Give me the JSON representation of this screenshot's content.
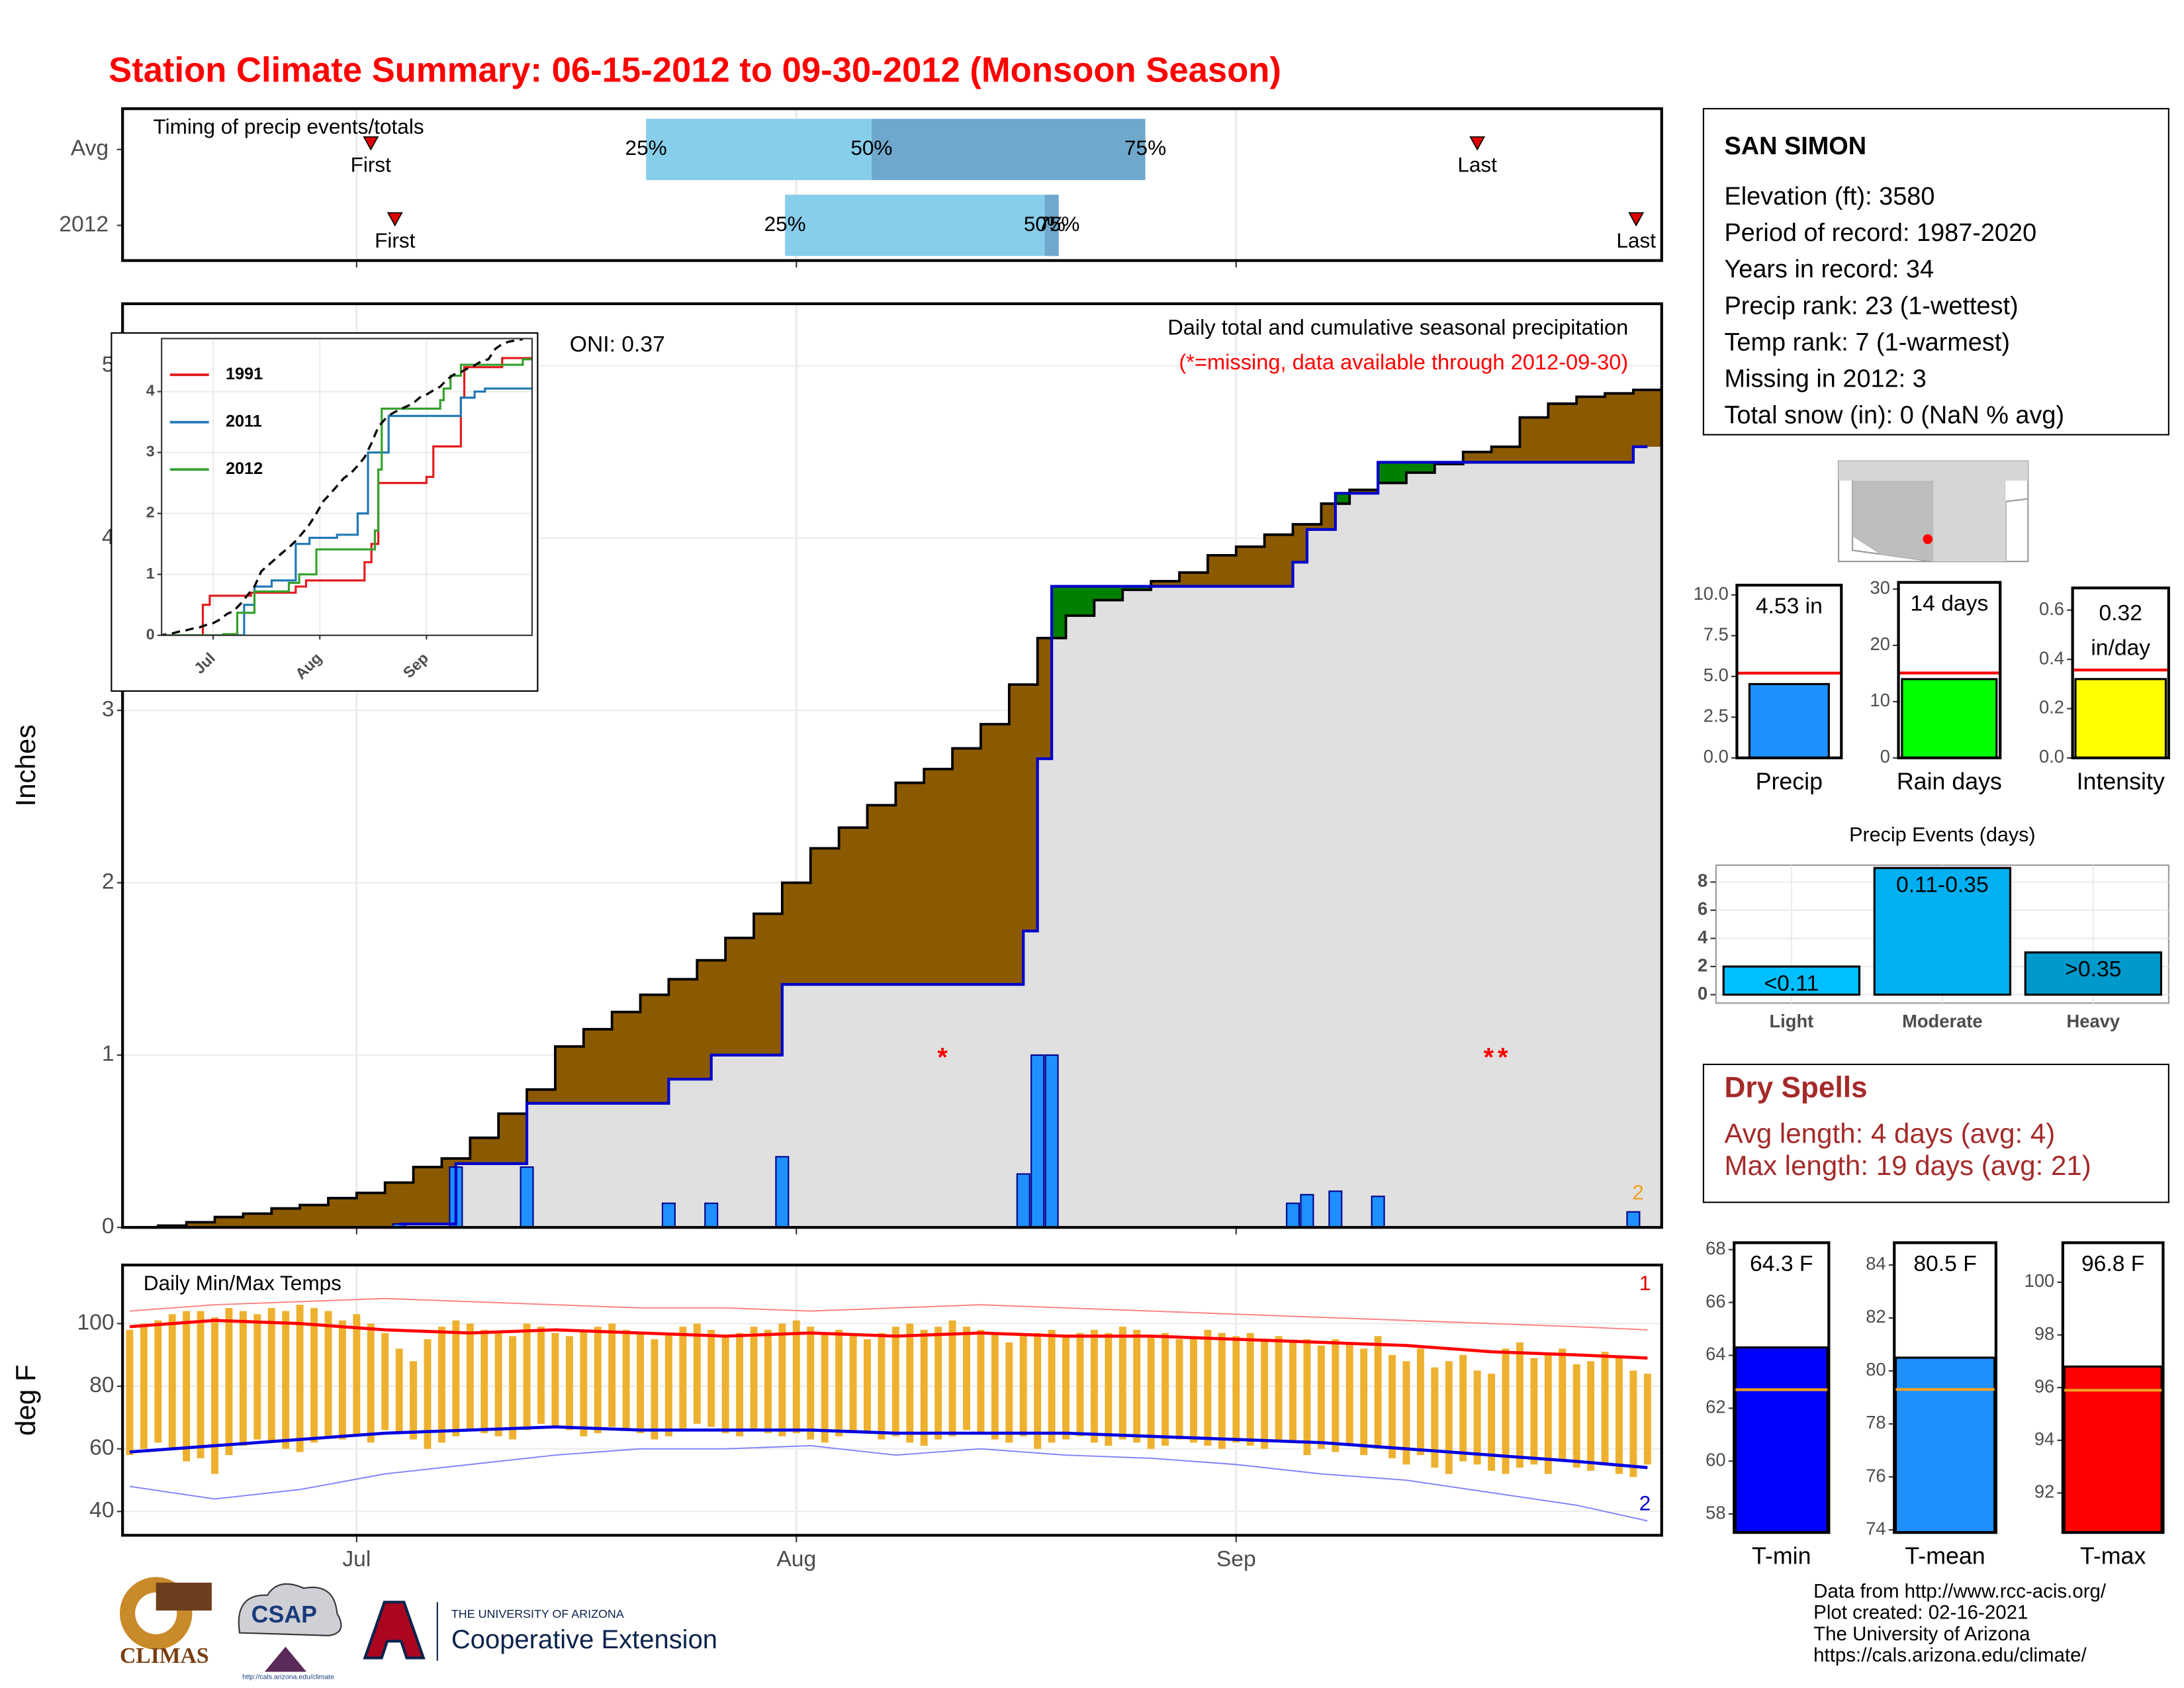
{
  "title": "Station Climate Summary: 06-15-2012 to 09-30-2012 (Monsoon Season)",
  "chart_data": [
    {
      "type": "timing",
      "title": "Timing of precip events/totals",
      "xlim": [
        -0.5,
        108
      ],
      "xticks": [
        {
          "value": 16,
          "label": "Jul"
        },
        {
          "value": 47,
          "label": "Aug"
        },
        {
          "value": 78,
          "label": "Sep"
        }
      ],
      "first_label": "First",
      "last_label": "Last",
      "percentile_labels": [
        "25%",
        "50%",
        "75%"
      ],
      "colors": [
        "#87ceeb",
        "#6fa8cc"
      ],
      "marker_color": "#e00000",
      "rows": [
        {
          "name": "Avg",
          "first": 17,
          "p25": 36.4,
          "p50": 52.3,
          "p75": 71.6,
          "last": 95
        },
        {
          "name": "2012",
          "first": 18.7,
          "p25": 46.2,
          "p50": 64.5,
          "p75": 65.5,
          "last": 106.2
        }
      ]
    },
    {
      "type": "step",
      "ylabel": "Inches",
      "subtitle": "Daily total and cumulative seasonal precipitation",
      "note": "(*=missing, data available through 2012-09-30)",
      "oni_label": "ONI: 0.37",
      "count_label": "2",
      "missing_symbol": "*",
      "missing_days": [
        57.3,
        95.8,
        96.8
      ],
      "xlim": [
        -0.5,
        108
      ],
      "xticks": [
        {
          "value": 16,
          "label": "Jul"
        },
        {
          "value": 47,
          "label": "Aug"
        },
        {
          "value": 78,
          "label": "Sep"
        }
      ],
      "ylim": [
        0,
        5.36
      ],
      "yticks": [
        0,
        1,
        2,
        3,
        4,
        5
      ],
      "grid": true,
      "colors": {
        "bars": "#1e90ff",
        "line": "#0000cc",
        "avg": "#000000",
        "below": "#8b5a00",
        "above": "#008000",
        "fill": "#e0e0e0"
      },
      "daily": {
        "x": [
          19,
          23,
          28,
          38,
          41,
          46,
          63,
          64,
          65,
          82,
          83,
          85,
          88,
          106
        ],
        "values": [
          0.02,
          0.35,
          0.35,
          0.14,
          0.14,
          0.41,
          0.31,
          1.0,
          1.0,
          0.14,
          0.19,
          0.21,
          0.18,
          0.09
        ]
      },
      "avg_cumulative": {
        "x": [
          0,
          2,
          4,
          6,
          8,
          10,
          12,
          14,
          16,
          18,
          20,
          22,
          24,
          26,
          28,
          30,
          32,
          34,
          36,
          38,
          40,
          42,
          44,
          46,
          48,
          50,
          52,
          54,
          56,
          58,
          60,
          62,
          64,
          66,
          68,
          70,
          72,
          74,
          76,
          78,
          80,
          82,
          84,
          86,
          88,
          90,
          92,
          94,
          96,
          98,
          100,
          102,
          104,
          106
        ],
        "values": [
          0.0,
          0.01,
          0.03,
          0.06,
          0.08,
          0.11,
          0.13,
          0.17,
          0.2,
          0.26,
          0.35,
          0.4,
          0.52,
          0.66,
          0.8,
          1.05,
          1.15,
          1.25,
          1.35,
          1.44,
          1.55,
          1.68,
          1.82,
          2.0,
          2.2,
          2.32,
          2.45,
          2.58,
          2.66,
          2.78,
          2.92,
          3.15,
          3.42,
          3.55,
          3.64,
          3.7,
          3.75,
          3.8,
          3.9,
          3.95,
          4.02,
          4.08,
          4.2,
          4.28,
          4.32,
          4.38,
          4.43,
          4.5,
          4.53,
          4.7,
          4.78,
          4.82,
          4.84,
          4.86
        ]
      }
    },
    {
      "type": "line",
      "xlim": [
        1,
        108.7
      ],
      "xticks": [
        {
          "value": 16,
          "label": "Jul"
        },
        {
          "value": 47,
          "label": "Aug"
        },
        {
          "value": 78,
          "label": "Sep"
        }
      ],
      "ylim": [
        0,
        4.87
      ],
      "yticks": [
        0,
        1,
        2,
        3,
        4
      ],
      "series": [
        {
          "name": "1991",
          "color": "#e31a1c",
          "x": [
            0,
            13,
            15,
            27,
            40,
            43,
            60,
            62,
            64,
            78,
            80,
            88,
            89,
            100
          ],
          "values": [
            0,
            0.5,
            0.65,
            0.7,
            0.8,
            0.9,
            1.2,
            1.5,
            2.5,
            2.6,
            3.1,
            3.9,
            4.4,
            4.55
          ]
        },
        {
          "name": "2011",
          "color": "#1f78b4",
          "x": [
            0,
            25,
            28,
            33,
            40,
            44,
            52,
            58,
            61,
            67,
            88,
            92,
            95
          ],
          "values": [
            0,
            0.5,
            0.8,
            0.9,
            1.5,
            1.6,
            1.65,
            2.0,
            3.0,
            3.6,
            3.9,
            4.0,
            4.05
          ]
        },
        {
          "name": "2012",
          "color": "#33a02c",
          "x": [
            0,
            19,
            23,
            28,
            38,
            41,
            46,
            63,
            64,
            65,
            82,
            83,
            85,
            88,
            106
          ],
          "values": [
            0,
            0.02,
            0.37,
            0.72,
            0.86,
            1.0,
            1.41,
            1.72,
            2.72,
            3.72,
            3.86,
            4.05,
            4.26,
            4.44,
            4.53
          ]
        }
      ]
    },
    {
      "type": "range",
      "title": "Daily Min/Max Temps",
      "ylabel": "deg F",
      "record_max_label": "1",
      "record_min_label": "2",
      "xlim": [
        -0.5,
        108
      ],
      "xticks": [
        {
          "value": 16,
          "label": "Jul"
        },
        {
          "value": 47,
          "label": "Aug"
        },
        {
          "value": 78,
          "label": "Sep"
        }
      ],
      "ylim": [
        32.4,
        118.7
      ],
      "yticks": [
        40,
        60,
        80,
        100
      ],
      "grid": true,
      "colors": {
        "bars": "#eeb12f",
        "avg_max": "#ff0000",
        "avg_min": "#0000e0",
        "record_max": "#ff8080",
        "record_min": "#8080ff"
      },
      "x": [
        0,
        1,
        2,
        3,
        4,
        5,
        6,
        7,
        8,
        9,
        10,
        11,
        12,
        13,
        14,
        15,
        16,
        17,
        18,
        19,
        20,
        21,
        22,
        23,
        24,
        25,
        26,
        27,
        28,
        29,
        30,
        31,
        32,
        33,
        34,
        35,
        36,
        37,
        38,
        39,
        40,
        41,
        42,
        43,
        44,
        45,
        46,
        47,
        48,
        49,
        50,
        51,
        52,
        53,
        54,
        55,
        56,
        57,
        58,
        59,
        60,
        61,
        62,
        63,
        64,
        65,
        66,
        67,
        68,
        69,
        70,
        71,
        72,
        73,
        74,
        75,
        76,
        77,
        78,
        79,
        80,
        81,
        82,
        83,
        84,
        85,
        86,
        87,
        88,
        89,
        90,
        91,
        92,
        93,
        94,
        95,
        96,
        97,
        98,
        99,
        100,
        101,
        102,
        103,
        104,
        105,
        106,
        107
      ],
      "max": [
        98,
        100,
        101,
        103,
        104,
        104,
        102,
        105,
        104,
        103,
        105,
        104,
        106,
        105,
        104,
        101,
        103,
        100,
        97,
        92,
        88,
        95,
        99,
        101,
        100,
        98,
        97,
        96,
        100,
        99,
        97,
        96,
        98,
        99,
        100,
        98,
        97,
        95,
        97,
        99,
        100,
        98,
        96,
        97,
        99,
        98,
        100,
        101,
        99,
        97,
        98,
        96,
        95,
        97,
        99,
        100,
        98,
        99,
        101,
        99,
        98,
        97,
        94,
        96,
        97,
        98,
        96,
        97,
        98,
        97,
        99,
        98,
        96,
        97,
        95,
        96,
        98,
        97,
        96,
        97,
        95,
        96,
        94,
        95,
        93,
        95,
        94,
        92,
        96,
        90,
        88,
        92,
        86,
        88,
        90,
        85,
        84,
        92,
        94,
        89,
        90,
        92,
        87,
        88,
        91,
        89,
        85,
        84
      ],
      "min": [
        58,
        60,
        62,
        60,
        56,
        57,
        52,
        58,
        61,
        63,
        62,
        60,
        59,
        62,
        64,
        63,
        64,
        62,
        66,
        65,
        63,
        60,
        62,
        64,
        66,
        65,
        64,
        63,
        66,
        68,
        67,
        66,
        64,
        65,
        67,
        66,
        65,
        63,
        64,
        66,
        68,
        67,
        65,
        64,
        66,
        65,
        64,
        65,
        63,
        62,
        64,
        66,
        65,
        63,
        64,
        62,
        61,
        63,
        64,
        66,
        65,
        63,
        62,
        64,
        60,
        62,
        63,
        64,
        62,
        61,
        63,
        62,
        60,
        61,
        63,
        62,
        61,
        60,
        62,
        61,
        60,
        63,
        62,
        58,
        60,
        59,
        61,
        58,
        60,
        57,
        55,
        58,
        54,
        52,
        56,
        55,
        53,
        52,
        54,
        55,
        52,
        56,
        54,
        53,
        55,
        52,
        51,
        55
      ],
      "normals_x": [
        0,
        6,
        12,
        18,
        24,
        30,
        36,
        42,
        48,
        54,
        60,
        66,
        72,
        78,
        84,
        90,
        96,
        102,
        107
      ],
      "avg_max": [
        99,
        101,
        100,
        98,
        97,
        98,
        97,
        96,
        97,
        96,
        97,
        96,
        96,
        95,
        94,
        93,
        91,
        90,
        89
      ],
      "avg_min": [
        59,
        61,
        63,
        65,
        66,
        67,
        66,
        66,
        66,
        65,
        65,
        65,
        64,
        63,
        62,
        60,
        58,
        56,
        54
      ],
      "record_max": [
        104,
        106,
        107,
        108,
        107,
        106,
        105,
        105,
        104,
        105,
        106,
        105,
        104,
        103,
        102,
        101,
        100,
        99,
        98
      ],
      "record_min": [
        48,
        44,
        47,
        52,
        55,
        58,
        60,
        60,
        61,
        58,
        60,
        58,
        57,
        55,
        52,
        50,
        46,
        42,
        37
      ]
    },
    {
      "type": "bar",
      "categories": [
        "Precip"
      ],
      "values": [
        4.53
      ],
      "value_labels": [
        "4.53 in"
      ],
      "average": 5.2,
      "average_color": "#ff0000",
      "colors": [
        "#1e90ff"
      ],
      "ylim": [
        0,
        10.6
      ],
      "yticks": [
        {
          "value": 0,
          "label": "0.0"
        },
        2.5,
        {
          "value": 5,
          "label": "5.0"
        },
        7.5,
        {
          "value": 10,
          "label": "10.0"
        }
      ]
    },
    {
      "type": "bar",
      "categories": [
        "Rain days"
      ],
      "values": [
        14
      ],
      "value_labels": [
        "14 days"
      ],
      "average": 15.1,
      "average_color": "#ff0000",
      "colors": [
        "#00ff00"
      ],
      "ylim": [
        0,
        31.2
      ],
      "yticks": [
        0,
        10,
        20,
        30
      ]
    },
    {
      "type": "bar",
      "categories": [
        "Intensity"
      ],
      "values": [
        0.32
      ],
      "value_labels": [
        [
          "0.32",
          "in/day"
        ]
      ],
      "average": 0.357,
      "average_color": "#ff0000",
      "colors": [
        "#ffff00"
      ],
      "ylim": [
        0,
        0.69
      ],
      "yticks": [
        {
          "value": 0,
          "label": "0.0"
        },
        0.2,
        0.4,
        0.6
      ]
    },
    {
      "type": "bar",
      "title": "Precip Events (days)",
      "categories": [
        "Light",
        "Moderate",
        "Heavy"
      ],
      "values": [
        2,
        9,
        3
      ],
      "value_labels": [
        "<0.11",
        "0.11-0.35",
        ">0.35"
      ],
      "colors": [
        "#00bfff",
        "#00b0f0",
        "#0099cc"
      ],
      "ylim": [
        -0.6,
        9.2
      ],
      "yticks": [
        0,
        2,
        4,
        6,
        8
      ],
      "grid": true
    },
    {
      "type": "bar",
      "categories": [
        "T-min"
      ],
      "values": [
        64.3
      ],
      "value_labels": [
        "64.3 F"
      ],
      "average": 62.7,
      "average_color": "#f0a020",
      "colors": [
        "#0000ff"
      ],
      "ylim": [
        57.3,
        68.26
      ],
      "yticks": [
        58,
        60,
        62,
        64,
        66,
        68
      ]
    },
    {
      "type": "bar",
      "categories": [
        "T-mean"
      ],
      "values": [
        80.5
      ],
      "value_labels": [
        "80.5 F"
      ],
      "average": 79.3,
      "average_color": "#f0a020",
      "colors": [
        "#1e90ff"
      ],
      "ylim": [
        73.9,
        84.84
      ],
      "yticks": [
        74,
        76,
        78,
        80,
        82,
        84
      ]
    },
    {
      "type": "bar",
      "categories": [
        "T-max"
      ],
      "values": [
        96.8
      ],
      "value_labels": [
        "96.8 F"
      ],
      "average": 95.9,
      "average_color": "#f0a020",
      "colors": [
        "#ff0000"
      ],
      "ylim": [
        90.5,
        101.5
      ],
      "yticks": [
        92,
        94,
        96,
        98,
        100
      ]
    }
  ],
  "station": {
    "name": "SAN SIMON",
    "lines": [
      "Elevation (ft): 3580",
      "Period of record: 1987-2020",
      "Years in record: 34",
      "Precip rank: 23 (1-wettest)",
      "Temp rank: 7 (1-warmest)",
      "Missing in 2012: 3",
      "Total snow (in): 0 (NaN % avg)"
    ]
  },
  "dry_spells": {
    "title": "Dry Spells",
    "lines": [
      "Avg length: 4 days (avg: 4)",
      "Max length: 19 days (avg: 21)"
    ]
  },
  "footer": {
    "lines": [
      "Data from http://www.rcc-acis.org/",
      "Plot created: 02-16-2021",
      "The University of Arizona",
      "https://cals.arizona.edu/climate/"
    ]
  },
  "logos": {
    "climas": "CLIMAS",
    "csap": "CSAP",
    "csap_url": "http://cals.arizona.edu/climate",
    "ua_name": "THE UNIVERSITY OF ARIZONA",
    "ua_unit": "Cooperative Extension"
  }
}
